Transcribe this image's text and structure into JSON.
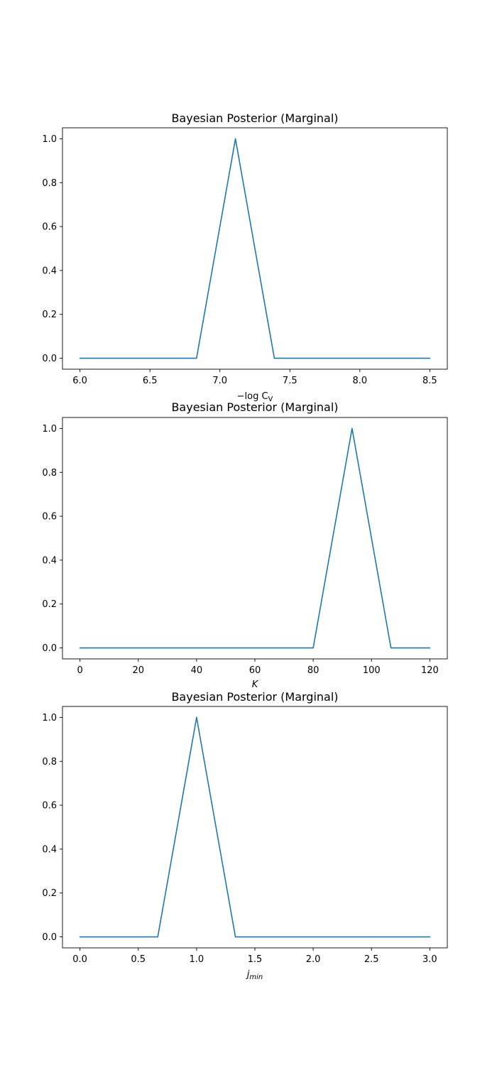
{
  "colors": {
    "line": "#1f77b4",
    "frame": "#000000",
    "background": "#ffffff"
  },
  "chart_data": [
    {
      "type": "line",
      "title": "Bayesian Posterior (Marginal)",
      "xlabel": "−log C",
      "xlabel_sub": "V",
      "ylabel": "",
      "xlim": [
        5.875,
        8.625
      ],
      "ylim": [
        -0.05,
        1.05
      ],
      "xticks": [
        6.0,
        6.5,
        7.0,
        7.5,
        8.0,
        8.5
      ],
      "xtick_labels": [
        "6.0",
        "6.5",
        "7.0",
        "7.5",
        "8.0",
        "8.5"
      ],
      "yticks": [
        0.0,
        0.2,
        0.4,
        0.6,
        0.8,
        1.0
      ],
      "ytick_labels": [
        "0.0",
        "0.2",
        "0.4",
        "0.6",
        "0.8",
        "1.0"
      ],
      "grid": false,
      "series": [
        {
          "x": [
            6.0,
            6.833,
            7.111,
            7.389,
            8.5
          ],
          "y": [
            0.0,
            0.0,
            1.0,
            0.0,
            0.0
          ]
        }
      ]
    },
    {
      "type": "line",
      "title": "Bayesian Posterior (Marginal)",
      "xlabel": "K",
      "xlabel_sub": "",
      "ylabel": "",
      "xlim": [
        -6,
        126
      ],
      "ylim": [
        -0.05,
        1.05
      ],
      "xticks": [
        0,
        20,
        40,
        60,
        80,
        100,
        120
      ],
      "xtick_labels": [
        "0",
        "20",
        "40",
        "60",
        "80",
        "100",
        "120"
      ],
      "yticks": [
        0.0,
        0.2,
        0.4,
        0.6,
        0.8,
        1.0
      ],
      "ytick_labels": [
        "0.0",
        "0.2",
        "0.4",
        "0.6",
        "0.8",
        "1.0"
      ],
      "grid": false,
      "series": [
        {
          "x": [
            0,
            80,
            93.33,
            106.67,
            120
          ],
          "y": [
            0.0,
            0.0,
            1.0,
            0.0,
            0.0
          ]
        }
      ]
    },
    {
      "type": "line",
      "title": "Bayesian Posterior (Marginal)",
      "xlabel": "j",
      "xlabel_sub": "min",
      "ylabel": "",
      "xlim": [
        -0.15,
        3.15
      ],
      "ylim": [
        -0.05,
        1.05
      ],
      "xticks": [
        0.0,
        0.5,
        1.0,
        1.5,
        2.0,
        2.5,
        3.0
      ],
      "xtick_labels": [
        "0.0",
        "0.5",
        "1.0",
        "1.5",
        "2.0",
        "2.5",
        "3.0"
      ],
      "yticks": [
        0.0,
        0.2,
        0.4,
        0.6,
        0.8,
        1.0
      ],
      "ytick_labels": [
        "0.0",
        "0.2",
        "0.4",
        "0.6",
        "0.8",
        "1.0"
      ],
      "grid": false,
      "series": [
        {
          "x": [
            0.0,
            0.667,
            1.0,
            1.333,
            3.0
          ],
          "y": [
            0.0,
            0.0,
            1.0,
            0.0,
            0.0
          ]
        }
      ]
    }
  ]
}
